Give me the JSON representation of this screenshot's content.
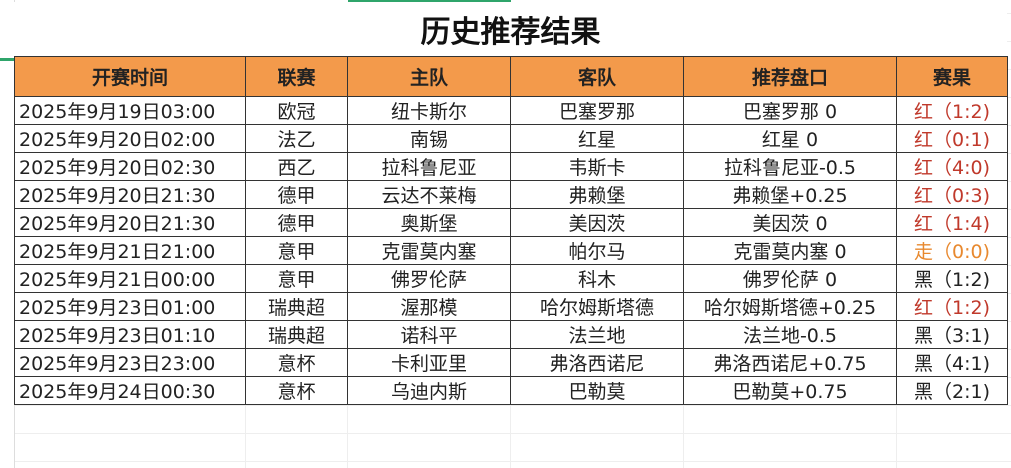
{
  "title": "历史推荐结果",
  "headers": [
    "开赛时间",
    "联赛",
    "主队",
    "客队",
    "推荐盘口",
    "赛果"
  ],
  "colors": {
    "header_bg": "#f39a4b",
    "win": "#c0392b",
    "push": "#e8892f",
    "loss": "#222222"
  },
  "rows": [
    {
      "time": "2025年9月19日03:00",
      "league": "欧冠",
      "home": "纽卡斯尔",
      "away": "巴塞罗那",
      "pick": "巴塞罗那 0",
      "result": "红（1:2)",
      "status": "red"
    },
    {
      "time": "2025年9月20日02:00",
      "league": "法乙",
      "home": "南锡",
      "away": "红星",
      "pick": "红星 0",
      "result": "红（0:1)",
      "status": "red"
    },
    {
      "time": "2025年9月20日02:30",
      "league": "西乙",
      "home": "拉科鲁尼亚",
      "away": "韦斯卡",
      "pick": "拉科鲁尼亚-0.5",
      "result": "红（4:0)",
      "status": "red"
    },
    {
      "time": "2025年9月20日21:30",
      "league": "德甲",
      "home": "云达不莱梅",
      "away": "弗赖堡",
      "pick": "弗赖堡+0.25",
      "result": "红（0:3)",
      "status": "red"
    },
    {
      "time": "2025年9月20日21:30",
      "league": "德甲",
      "home": "奥斯堡",
      "away": "美因茨",
      "pick": "美因茨 0",
      "result": "红（1:4)",
      "status": "red"
    },
    {
      "time": "2025年9月21日21:00",
      "league": "意甲",
      "home": "克雷莫内塞",
      "away": "帕尔马",
      "pick": "克雷莫内塞 0",
      "result": "走（0:0)",
      "status": "orange"
    },
    {
      "time": "2025年9月21日00:00",
      "league": "意甲",
      "home": "佛罗伦萨",
      "away": "科木",
      "pick": "佛罗伦萨 0",
      "result": "黑（1:2)",
      "status": "black"
    },
    {
      "time": "2025年9月23日01:00",
      "league": "瑞典超",
      "home": "渥那模",
      "away": "哈尔姆斯塔德",
      "pick": "哈尔姆斯塔德+0.25",
      "result": "红（1:2)",
      "status": "red"
    },
    {
      "time": "2025年9月23日01:10",
      "league": "瑞典超",
      "home": "诺科平",
      "away": "法兰地",
      "pick": "法兰地-0.5",
      "result": "黑（3:1)",
      "status": "black"
    },
    {
      "time": "2025年9月23日23:00",
      "league": "意杯",
      "home": "卡利亚里",
      "away": "弗洛西诺尼",
      "pick": "弗洛西诺尼+0.75",
      "result": "黑（4:1)",
      "status": "black"
    },
    {
      "time": "2025年9月24日00:30",
      "league": "意杯",
      "home": "乌迪内斯",
      "away": "巴勒莫",
      "pick": "巴勒莫+0.75",
      "result": "黑（2:1)",
      "status": "black"
    }
  ]
}
